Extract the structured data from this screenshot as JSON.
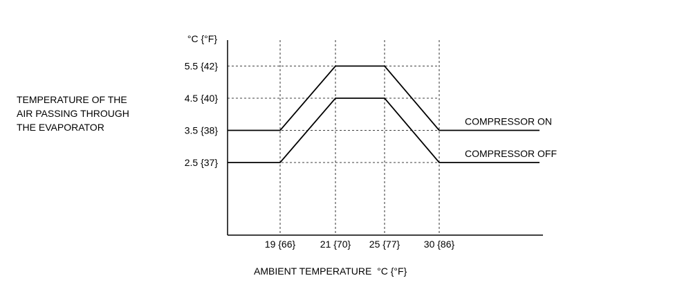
{
  "chart_data": {
    "type": "line",
    "x_unit_label": "AMBIENT TEMPERATURE  °C {°F}",
    "y_unit_label": "°C {°F}",
    "ylabel_lines": [
      "TEMPERATURE OF THE",
      "AIR PASSING THROUGH",
      "THE EVAPORATOR"
    ],
    "x_ticks": [
      {
        "value": 19,
        "label": "19 {66}"
      },
      {
        "value": 21,
        "label": "21 {70}"
      },
      {
        "value": 25,
        "label": "25 {77}"
      },
      {
        "value": 30,
        "label": "30 {86}"
      }
    ],
    "y_ticks": [
      {
        "value": 5.5,
        "label": "5.5 {42}"
      },
      {
        "value": 4.5,
        "label": "4.5 {40}"
      },
      {
        "value": 3.5,
        "label": "3.5 {38}"
      },
      {
        "value": 2.5,
        "label": "2.5 {37}"
      }
    ],
    "xlim": [
      14,
      40
    ],
    "ylim": [
      0,
      7
    ],
    "series": [
      {
        "name": "COMPRESSOR ON",
        "x": [
          14,
          19,
          21,
          25,
          30,
          40
        ],
        "y": [
          3.5,
          3.5,
          5.5,
          5.5,
          3.5,
          3.5
        ]
      },
      {
        "name": "COMPRESSOR OFF",
        "x": [
          14,
          19,
          21,
          25,
          30,
          40
        ],
        "y": [
          2.5,
          2.5,
          4.5,
          4.5,
          2.5,
          2.5
        ]
      }
    ],
    "grid": "dashed at ticks"
  }
}
